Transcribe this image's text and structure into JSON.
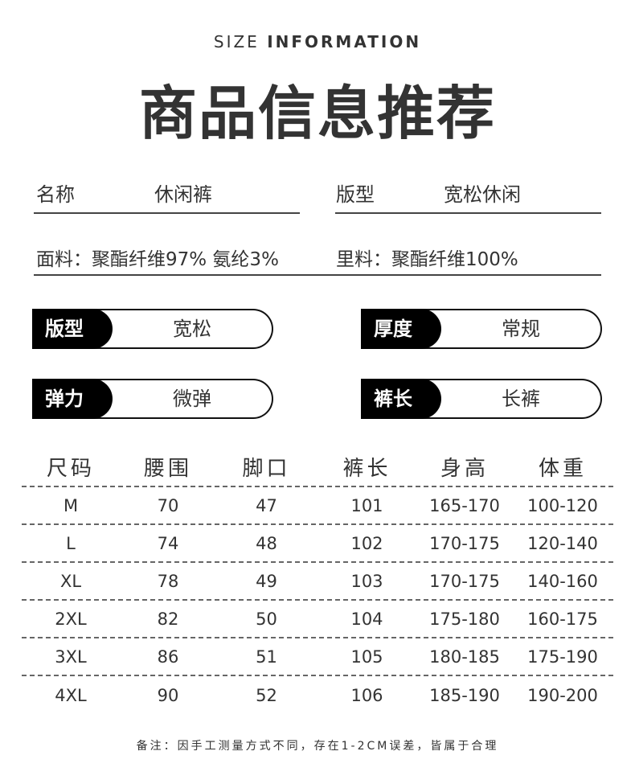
{
  "header": {
    "subtitle_light": "SIZE",
    "subtitle_bold": "INFORMATION",
    "title": "商品信息推荐"
  },
  "info": {
    "name_label": "名称",
    "name_value": "休闲裤",
    "fit_label": "版型",
    "fit_value": "宽松休闲",
    "fabric": "面料：聚酯纤维97% 氨纶3%",
    "lining": "里料：聚酯纤维100%"
  },
  "attributes": [
    {
      "label": "版型",
      "value": "宽松"
    },
    {
      "label": "厚度",
      "value": "常规"
    },
    {
      "label": "弹力",
      "value": "微弹"
    },
    {
      "label": "裤长",
      "value": "长裤"
    }
  ],
  "table": {
    "headers": [
      "尺码",
      "腰围",
      "脚口",
      "裤长",
      "身高",
      "体重"
    ],
    "rows": [
      [
        "M",
        "70",
        "47",
        "101",
        "165-170",
        "100-120"
      ],
      [
        "L",
        "74",
        "48",
        "102",
        "170-175",
        "120-140"
      ],
      [
        "XL",
        "78",
        "49",
        "103",
        "170-175",
        "140-160"
      ],
      [
        "2XL",
        "82",
        "50",
        "104",
        "175-180",
        "160-175"
      ],
      [
        "3XL",
        "86",
        "51",
        "105",
        "180-185",
        "175-190"
      ],
      [
        "4XL",
        "90",
        "52",
        "106",
        "185-190",
        "190-200"
      ]
    ]
  },
  "note": "备注：因手工测量方式不同，存在1-2CM误差，皆属于合理"
}
